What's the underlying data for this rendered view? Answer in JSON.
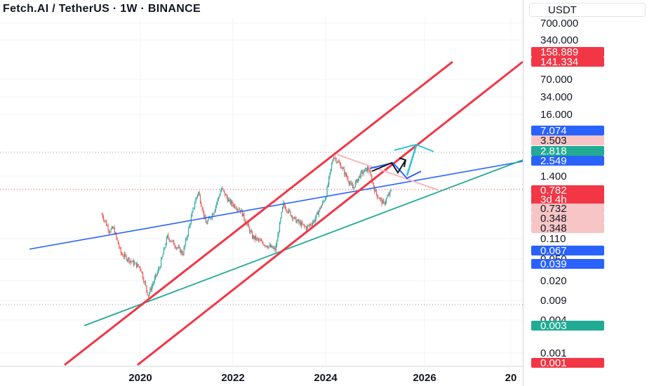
{
  "header": {
    "title": "Fetch.AI / TetherUS · 1W · BINANCE",
    "currency": "USDT"
  },
  "colors": {
    "up": "#26a69a",
    "down": "#ef5350",
    "channel": "#f23645",
    "trend_blue": "#2962ff",
    "trend_green": "#22ab94",
    "dotted": "#9598a1"
  },
  "chart_data": {
    "type": "candlestick",
    "scale": "log",
    "x_tick_labels": [
      "2020",
      "2022",
      "2024",
      "2026",
      "20"
    ],
    "y_tick_labels": [
      "700.000",
      "340.000",
      "70.000",
      "34.000",
      "16.000",
      "1.400",
      "0.110",
      "0.050",
      "0.020",
      "0.009",
      "0.004",
      "0.001"
    ],
    "price_labels": [
      {
        "text": "158.889",
        "color": "#f23645",
        "text_color": "#ffffff"
      },
      {
        "text": "141.334",
        "color": "#f23645",
        "text_color": "#ffffff"
      },
      {
        "text": "7.074",
        "color": "#2962ff",
        "text_color": "#ffffff"
      },
      {
        "text": "3.503",
        "color": "#f7c5c5",
        "text_color": "#131722"
      },
      {
        "text": "2.818",
        "color": "#22ab94",
        "text_color": "#ffffff"
      },
      {
        "text": "2.549",
        "color": "#2962ff",
        "text_color": "#ffffff"
      },
      {
        "text": "0.782",
        "color": "#f23645",
        "text_color": "#ffffff"
      },
      {
        "text": "3d 4h",
        "color": "#f23645",
        "text_color": "#ffffff"
      },
      {
        "text": "0.732",
        "color": "#f7c5c5",
        "text_color": "#131722"
      },
      {
        "text": "0.348",
        "color": "#f7c5c5",
        "text_color": "#131722"
      },
      {
        "text": "0.348",
        "color": "#f7c5c5",
        "text_color": "#131722"
      },
      {
        "text": "0.067",
        "color": "#2962ff",
        "text_color": "#ffffff"
      },
      {
        "text": "0.039",
        "color": "#2962ff",
        "text_color": "#ffffff"
      },
      {
        "text": "0.003",
        "color": "#22ab94",
        "text_color": "#ffffff"
      },
      {
        "text": "0.001",
        "color": "#f23645",
        "text_color": "#ffffff"
      }
    ],
    "price_path": [
      {
        "date": "2019-03",
        "price": 0.3
      },
      {
        "date": "2019-05",
        "price": 0.15
      },
      {
        "date": "2019-06",
        "price": 0.17
      },
      {
        "date": "2019-08",
        "price": 0.06
      },
      {
        "date": "2019-11",
        "price": 0.042
      },
      {
        "date": "2020-01",
        "price": 0.034
      },
      {
        "date": "2020-03",
        "price": 0.011
      },
      {
        "date": "2020-06",
        "price": 0.035
      },
      {
        "date": "2020-08",
        "price": 0.12
      },
      {
        "date": "2020-12",
        "price": 0.06
      },
      {
        "date": "2021-03",
        "price": 0.45
      },
      {
        "date": "2021-04",
        "price": 0.75
      },
      {
        "date": "2021-06",
        "price": 0.2
      },
      {
        "date": "2021-08",
        "price": 0.33
      },
      {
        "date": "2021-10",
        "price": 0.85
      },
      {
        "date": "2021-12",
        "price": 0.5
      },
      {
        "date": "2022-03",
        "price": 0.35
      },
      {
        "date": "2022-06",
        "price": 0.12
      },
      {
        "date": "2022-09",
        "price": 0.09
      },
      {
        "date": "2022-12",
        "price": 0.07
      },
      {
        "date": "2023-02",
        "price": 0.45
      },
      {
        "date": "2023-05",
        "price": 0.24
      },
      {
        "date": "2023-08",
        "price": 0.17
      },
      {
        "date": "2023-10",
        "price": 0.23
      },
      {
        "date": "2024-01",
        "price": 0.6
      },
      {
        "date": "2024-03",
        "price": 3.2
      },
      {
        "date": "2024-05",
        "price": 2.1
      },
      {
        "date": "2024-08",
        "price": 0.85
      },
      {
        "date": "2024-10",
        "price": 1.5
      },
      {
        "date": "2024-12",
        "price": 1.95
      },
      {
        "date": "2025-02",
        "price": 0.7
      },
      {
        "date": "2025-04",
        "price": 0.45
      },
      {
        "date": "2025-06",
        "price": 0.78
      }
    ],
    "grid": true,
    "legend": "none"
  }
}
